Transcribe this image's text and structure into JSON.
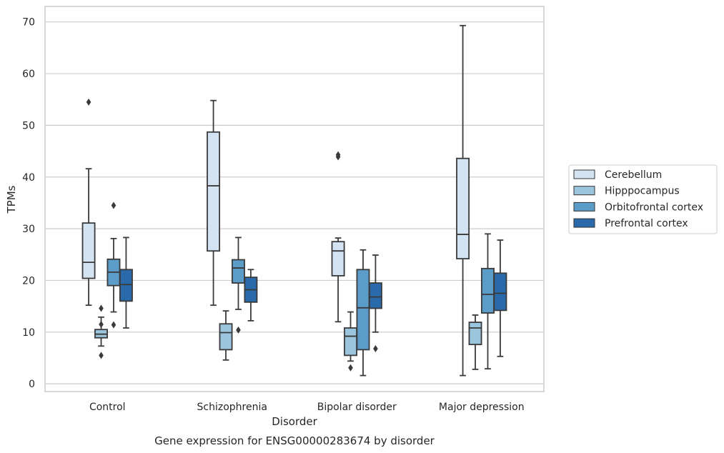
{
  "chart_data": {
    "type": "box",
    "caption": "Gene expression for ENSG00000283674 by disorder",
    "xlabel": "Disorder",
    "ylabel": "TPMs",
    "ylim": [
      -1.5,
      73
    ],
    "yticks": [
      0,
      10,
      20,
      30,
      40,
      50,
      60,
      70
    ],
    "grid": true,
    "legend_position": "right",
    "categories": [
      "Control",
      "Schizophrenia",
      "Bipolar disorder",
      "Major depression"
    ],
    "series": [
      {
        "name": "Cerebellum",
        "color": "#d3e3f2",
        "boxes": [
          {
            "whisker_low": 15.2,
            "q1": 20.4,
            "median": 23.5,
            "q3": 31.1,
            "whisker_high": 41.6,
            "outliers": [
              54.5
            ]
          },
          {
            "whisker_low": 15.2,
            "q1": 25.7,
            "median": 38.3,
            "q3": 48.7,
            "whisker_high": 54.8,
            "outliers": []
          },
          {
            "whisker_low": 12.0,
            "q1": 20.9,
            "median": 25.7,
            "q3": 27.5,
            "whisker_high": 28.2,
            "outliers": [
              43.9,
              44.3
            ]
          },
          {
            "whisker_low": 1.6,
            "q1": 24.2,
            "median": 28.9,
            "q3": 43.6,
            "whisker_high": 69.3,
            "outliers": []
          }
        ]
      },
      {
        "name": "Hipppocampus",
        "color": "#9bc4dd",
        "boxes": [
          {
            "whisker_low": 7.3,
            "q1": 8.9,
            "median": 9.6,
            "q3": 10.5,
            "whisker_high": 12.9,
            "outliers": [
              14.6,
              11.5,
              5.5
            ]
          },
          {
            "whisker_low": 4.6,
            "q1": 6.6,
            "median": 9.9,
            "q3": 11.6,
            "whisker_high": 14.1,
            "outliers": []
          },
          {
            "whisker_low": 4.4,
            "q1": 5.5,
            "median": 9.2,
            "q3": 10.8,
            "whisker_high": 13.9,
            "outliers": [
              3.1
            ]
          },
          {
            "whisker_low": 2.8,
            "q1": 7.6,
            "median": 10.8,
            "q3": 11.9,
            "whisker_high": 13.3,
            "outliers": []
          }
        ]
      },
      {
        "name": "Orbitofrontal cortex",
        "color": "#5b9cc9",
        "boxes": [
          {
            "whisker_low": 13.9,
            "q1": 19.0,
            "median": 21.6,
            "q3": 24.1,
            "whisker_high": 28.1,
            "outliers": [
              34.5,
              11.4
            ]
          },
          {
            "whisker_low": 14.4,
            "q1": 19.5,
            "median": 22.4,
            "q3": 24.0,
            "whisker_high": 28.3,
            "outliers": [
              10.4
            ]
          },
          {
            "whisker_low": 1.6,
            "q1": 6.6,
            "median": 14.7,
            "q3": 22.1,
            "whisker_high": 25.9,
            "outliers": []
          },
          {
            "whisker_low": 2.9,
            "q1": 13.7,
            "median": 17.3,
            "q3": 22.3,
            "whisker_high": 29.0,
            "outliers": []
          }
        ]
      },
      {
        "name": "Prefrontal cortex",
        "color": "#2a6aaa",
        "boxes": [
          {
            "whisker_low": 10.8,
            "q1": 16.0,
            "median": 19.2,
            "q3": 22.1,
            "whisker_high": 28.3,
            "outliers": []
          },
          {
            "whisker_low": 12.2,
            "q1": 15.8,
            "median": 18.2,
            "q3": 20.6,
            "whisker_high": 22.1,
            "outliers": []
          },
          {
            "whisker_low": 10.0,
            "q1": 14.6,
            "median": 16.8,
            "q3": 19.5,
            "whisker_high": 24.9,
            "outliers": [
              6.8
            ]
          },
          {
            "whisker_low": 5.3,
            "q1": 14.2,
            "median": 17.5,
            "q3": 21.4,
            "whisker_high": 27.8,
            "outliers": []
          }
        ]
      }
    ]
  }
}
